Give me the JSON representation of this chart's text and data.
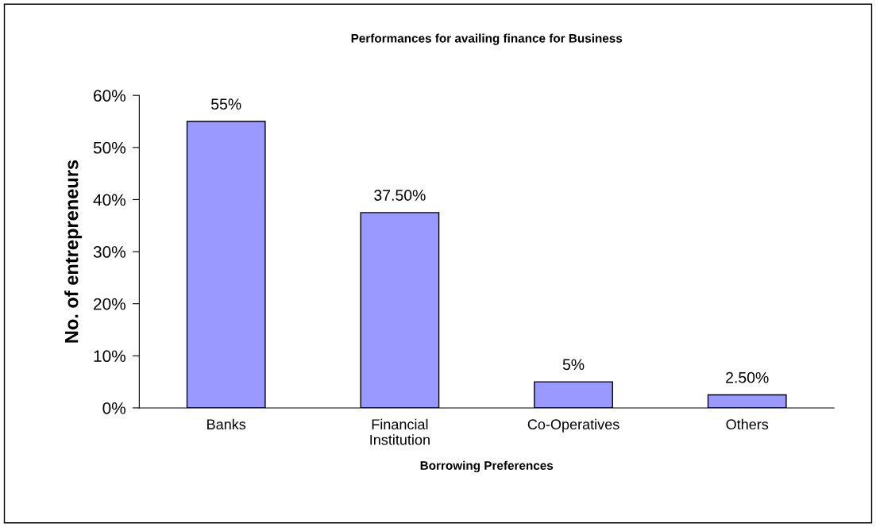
{
  "chart_data": {
    "type": "bar",
    "title": "Performances for availing finance for Business",
    "xlabel": "Borrowing Preferences",
    "ylabel": "No. of entrepreneurs",
    "categories": [
      "Banks",
      "Financial\nInstitution",
      "Co-Operatives",
      "Others"
    ],
    "values": [
      55,
      37.5,
      5,
      2.5
    ],
    "value_labels": [
      "55%",
      "37.50%",
      "5%",
      "2.50%"
    ],
    "color": "#9999ff",
    "ylim": [
      0,
      60
    ],
    "yticks": [
      {
        "value": 0,
        "label": "0%"
      },
      {
        "value": 10,
        "label": "10%"
      },
      {
        "value": 20,
        "label": "20%"
      },
      {
        "value": 30,
        "label": "30%"
      },
      {
        "value": 40,
        "label": "40%"
      },
      {
        "value": 50,
        "label": "50%"
      },
      {
        "value": 60,
        "label": "60%"
      }
    ],
    "grid": false,
    "legend": false
  }
}
